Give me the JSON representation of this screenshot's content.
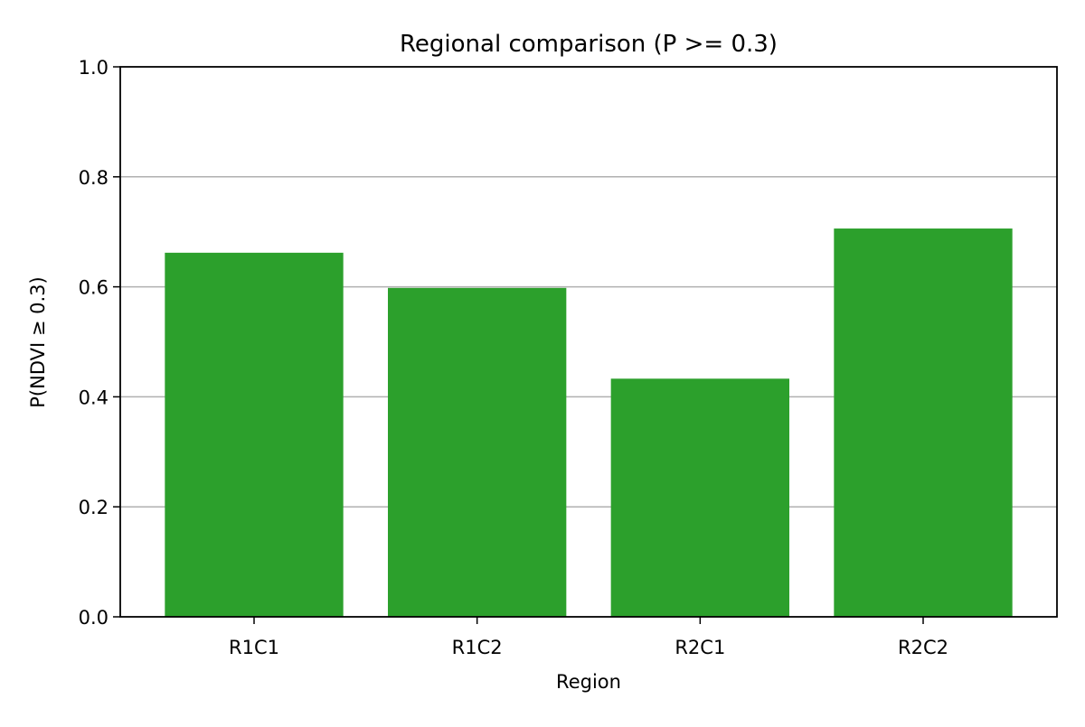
{
  "chart_data": {
    "type": "bar",
    "title": "Regional comparison (P >= 0.3)",
    "xlabel": "Region",
    "ylabel": "P(NDVI ≥ 0.3)",
    "categories": [
      "R1C1",
      "R1C2",
      "R2C1",
      "R2C2"
    ],
    "values": [
      0.662,
      0.598,
      0.433,
      0.706
    ],
    "ylim": [
      0,
      1.0
    ],
    "yticks": [
      "0.0",
      "0.2",
      "0.4",
      "0.6",
      "0.8",
      "1.0"
    ],
    "grid": "y",
    "legend": "none",
    "bar_color": "#2ca02c",
    "grid_color": "#b0b0b0",
    "axis_color": "#000000"
  }
}
